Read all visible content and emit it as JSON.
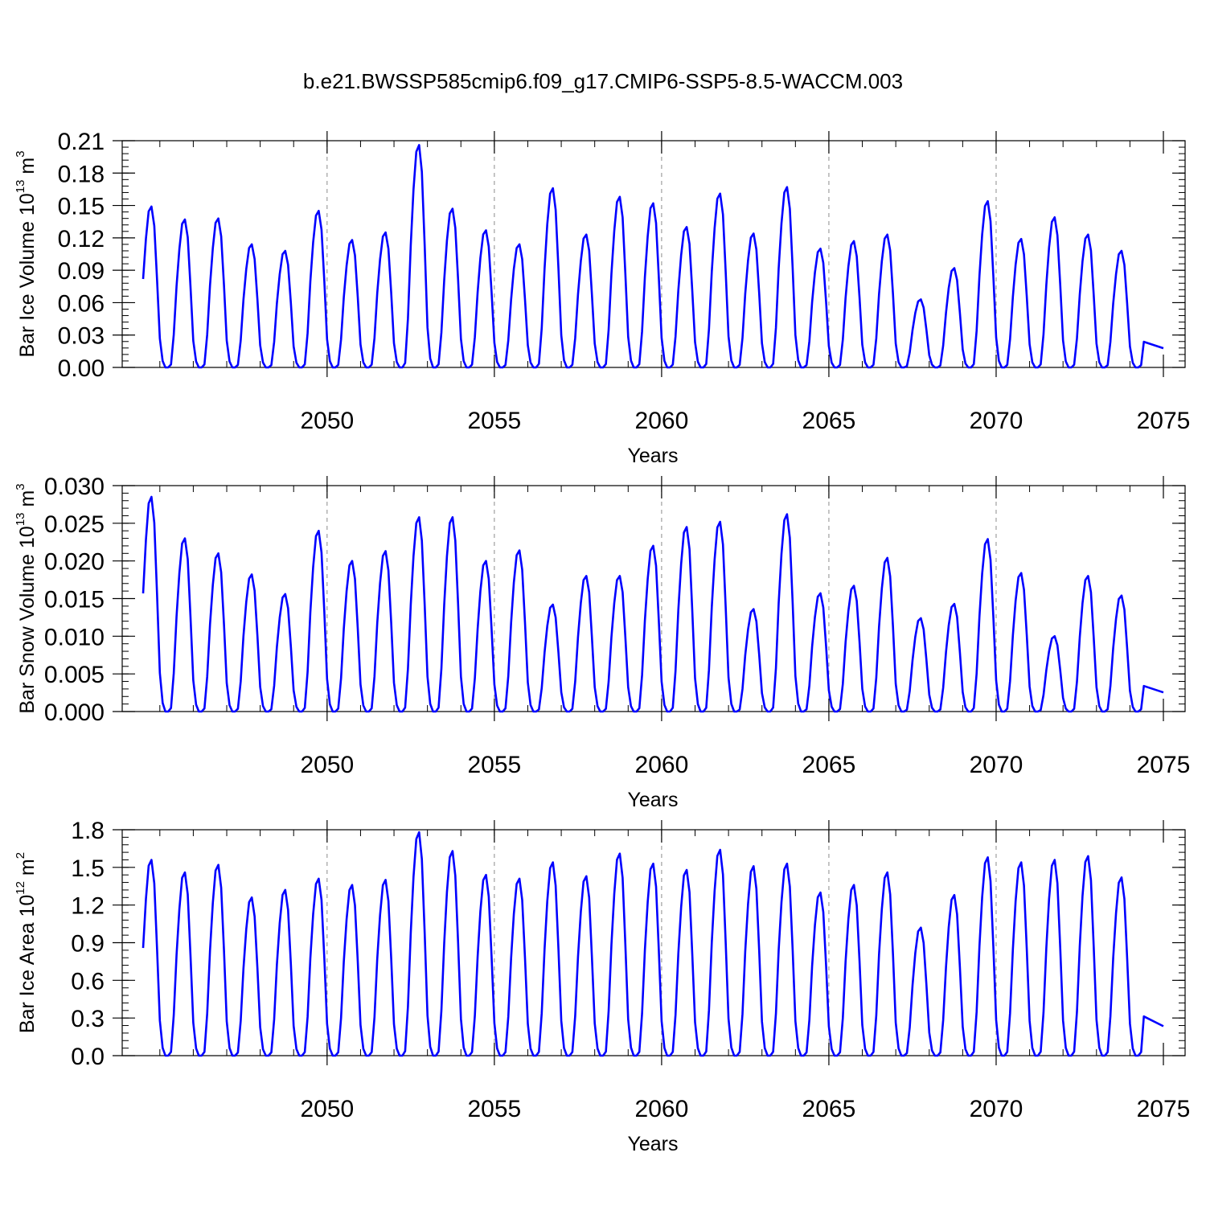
{
  "figure": {
    "title": "b.e21.BWSSP585cmip6.f09_g17.CMIP6-SSP5-8.5-WACCM.003"
  },
  "colors": {
    "line": "#0000ff",
    "axes": "#000000",
    "grid": "#8c8c8c"
  },
  "chart_data": [
    {
      "type": "line",
      "ylabel": "Bar Ice Volume 10",
      "ylabel_exp": "13",
      "ylabel_unit": " m",
      "ylabel_unit_exp": "3",
      "xlabel": "Years",
      "xlim": [
        2044.5,
        2075.0
      ],
      "ylim": [
        0.0,
        0.21
      ],
      "xticks": [
        2050,
        2055,
        2060,
        2065,
        2070,
        2075
      ],
      "xtick_labels": [
        "2050",
        "2055",
        "2060",
        "2065",
        "2070",
        "2075"
      ],
      "yticks": [
        0.0,
        0.03,
        0.06,
        0.09,
        0.12,
        0.15,
        0.18,
        0.21
      ],
      "ytick_labels": [
        "0.00",
        "0.03",
        "0.06",
        "0.09",
        "0.12",
        "0.15",
        "0.18",
        "0.21"
      ],
      "grid": "vertical dashed at major x ticks",
      "start_year": 2044.5,
      "annual_peaks": [
        0.149,
        0.137,
        0.138,
        0.114,
        0.108,
        0.145,
        0.118,
        0.125,
        0.206,
        0.147,
        0.127,
        0.114,
        0.166,
        0.123,
        0.158,
        0.152,
        0.13,
        0.161,
        0.124,
        0.167,
        0.11,
        0.117,
        0.123,
        0.063,
        0.092,
        0.154,
        0.119,
        0.139,
        0.123,
        0.108
      ],
      "series": [
        {
          "name": "Bar Ice Volume",
          "x": [],
          "values": []
        }
      ]
    },
    {
      "type": "line",
      "ylabel": "Bar Snow Volume 10",
      "ylabel_exp": "13",
      "ylabel_unit": " m",
      "ylabel_unit_exp": "3",
      "xlabel": "Years",
      "xlim": [
        2044.5,
        2075.0
      ],
      "ylim": [
        0.0,
        0.03
      ],
      "xticks": [
        2050,
        2055,
        2060,
        2065,
        2070,
        2075
      ],
      "xtick_labels": [
        "2050",
        "2055",
        "2060",
        "2065",
        "2070",
        "2075"
      ],
      "yticks": [
        0.0,
        0.005,
        0.01,
        0.015,
        0.02,
        0.025,
        0.03
      ],
      "ytick_labels": [
        "0.000",
        "0.005",
        "0.010",
        "0.015",
        "0.020",
        "0.025",
        "0.030"
      ],
      "grid": "vertical dashed at major x ticks",
      "start_year": 2044.5,
      "annual_peaks": [
        0.0285,
        0.023,
        0.021,
        0.0182,
        0.0156,
        0.024,
        0.02,
        0.0213,
        0.0258,
        0.0258,
        0.02,
        0.0214,
        0.0142,
        0.018,
        0.018,
        0.022,
        0.0245,
        0.0252,
        0.0136,
        0.0262,
        0.0157,
        0.0167,
        0.0204,
        0.0124,
        0.0143,
        0.0229,
        0.0184,
        0.01,
        0.018,
        0.0154
      ],
      "series": [
        {
          "name": "Bar Snow Volume",
          "x": [],
          "values": []
        }
      ]
    },
    {
      "type": "line",
      "ylabel": "Bar Ice Area 10",
      "ylabel_exp": "12",
      "ylabel_unit": " m",
      "ylabel_unit_exp": "2",
      "xlabel": "Years",
      "xlim": [
        2044.5,
        2075.0
      ],
      "ylim": [
        0.0,
        1.8
      ],
      "xticks": [
        2050,
        2055,
        2060,
        2065,
        2070,
        2075
      ],
      "xtick_labels": [
        "2050",
        "2055",
        "2060",
        "2065",
        "2070",
        "2075"
      ],
      "yticks": [
        0.0,
        0.3,
        0.6,
        0.9,
        1.2,
        1.5,
        1.8
      ],
      "ytick_labels": [
        "0.0",
        "0.3",
        "0.6",
        "0.9",
        "1.2",
        "1.5",
        "1.8"
      ],
      "grid": "vertical dashed at major x ticks",
      "start_year": 2044.5,
      "annual_peaks": [
        1.56,
        1.46,
        1.52,
        1.26,
        1.32,
        1.41,
        1.36,
        1.4,
        1.78,
        1.63,
        1.44,
        1.41,
        1.54,
        1.43,
        1.61,
        1.53,
        1.48,
        1.64,
        1.51,
        1.53,
        1.3,
        1.36,
        1.46,
        1.02,
        1.28,
        1.58,
        1.54,
        1.56,
        1.59,
        1.42
      ],
      "series": [
        {
          "name": "Bar Ice Area",
          "x": [],
          "values": []
        }
      ]
    }
  ]
}
